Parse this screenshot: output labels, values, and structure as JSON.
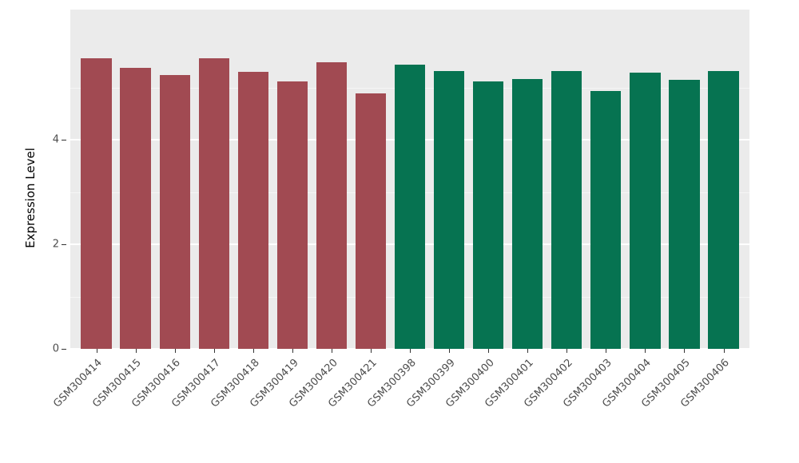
{
  "chart_data": {
    "type": "bar",
    "title": "",
    "xlabel": "",
    "ylabel": "Expression Level",
    "ylim": [
      0,
      6.5
    ],
    "yticks": [
      0,
      2,
      4
    ],
    "yticks_minor": [
      1,
      3,
      5
    ],
    "grid": true,
    "legend_position": "none",
    "panel_background": "#EBEBEB",
    "group_colors": {
      "group1": "#A14A52",
      "group2": "#067351"
    },
    "categories": [
      "GSM300414",
      "GSM300415",
      "GSM300416",
      "GSM300417",
      "GSM300418",
      "GSM300419",
      "GSM300420",
      "GSM300421",
      "GSM300398",
      "GSM300399",
      "GSM300400",
      "GSM300401",
      "GSM300402",
      "GSM300403",
      "GSM300404",
      "GSM300405",
      "GSM300406"
    ],
    "values": [
      5.57,
      5.38,
      5.24,
      5.57,
      5.3,
      5.13,
      5.49,
      4.89,
      5.44,
      5.32,
      5.13,
      5.17,
      5.32,
      4.94,
      5.29,
      5.16,
      5.33
    ],
    "groups": [
      "group1",
      "group1",
      "group1",
      "group1",
      "group1",
      "group1",
      "group1",
      "group1",
      "group2",
      "group2",
      "group2",
      "group2",
      "group2",
      "group2",
      "group2",
      "group2",
      "group2"
    ]
  }
}
